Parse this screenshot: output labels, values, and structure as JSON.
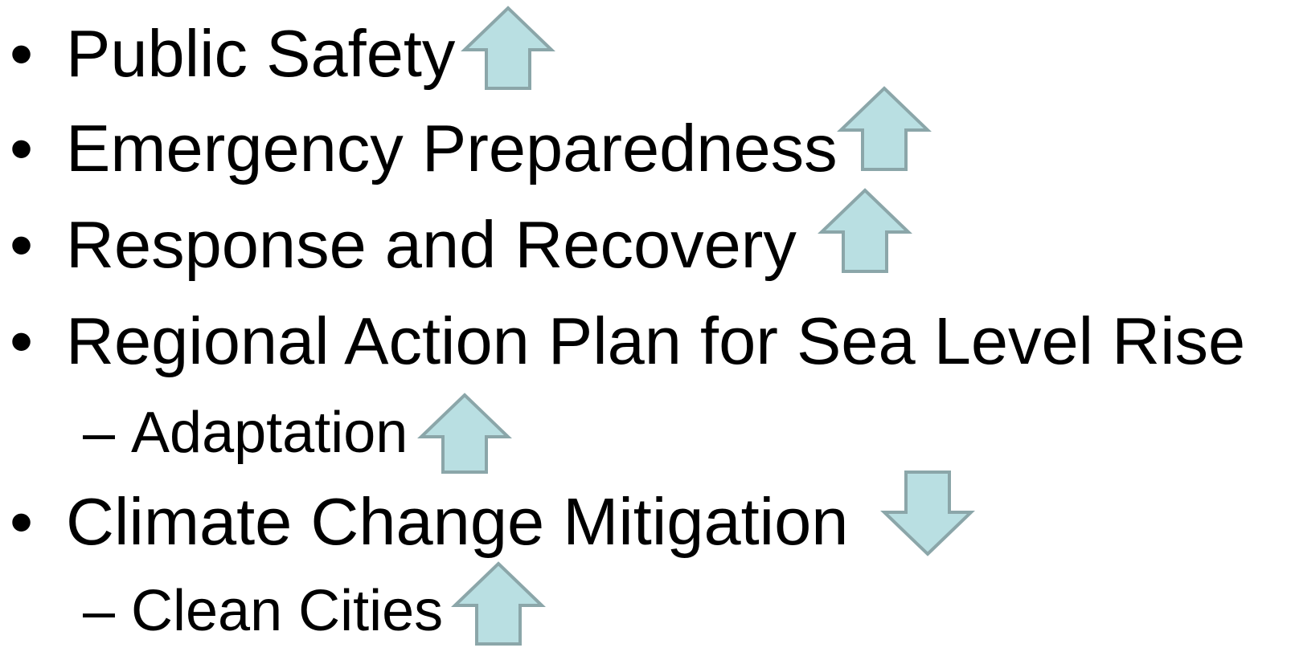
{
  "items": [
    {
      "marker": "•",
      "text": "Public Safety"
    },
    {
      "marker": "•",
      "text": "Emergency Preparedness"
    },
    {
      "marker": "•",
      "text": "Response and Recovery"
    },
    {
      "marker": "•",
      "text": "Regional Action Plan for Sea Level Rise"
    },
    {
      "marker": "–",
      "text": "Adaptation"
    },
    {
      "marker": "•",
      "text": "Climate Change Mitigation"
    },
    {
      "marker": "–",
      "text": "Clean Cities"
    }
  ]
}
